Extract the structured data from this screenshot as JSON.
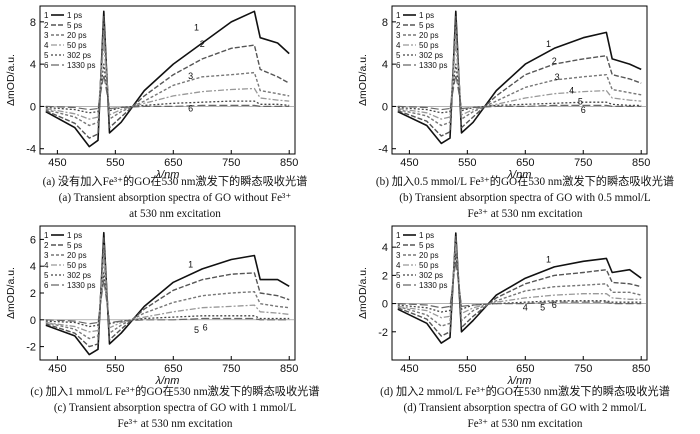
{
  "chart_data": [
    {
      "type": "line",
      "panel": "a",
      "xlabel": "λ/nm",
      "ylabel": "ΔmOD/a.u.",
      "xlim": [
        420,
        860
      ],
      "ylim": [
        -4.5,
        9.5
      ],
      "xticks": [
        450,
        550,
        650,
        750,
        850
      ],
      "yticks": [
        -4,
        0,
        4,
        8
      ],
      "legend": [
        {
          "num": "1",
          "label": "1 ps"
        },
        {
          "num": "2",
          "label": "5 ps"
        },
        {
          "num": "3",
          "label": "20 ps"
        },
        {
          "num": "4",
          "label": "50 ps"
        },
        {
          "num": "5",
          "label": "302 ps"
        },
        {
          "num": "6",
          "label": "1330 ps"
        }
      ],
      "legend_position": "top-left",
      "annotations": [
        {
          "text": "1",
          "x": 690,
          "y": 7.2
        },
        {
          "text": "2",
          "x": 700,
          "y": 5.6
        },
        {
          "text": "3",
          "x": 680,
          "y": 2.6
        },
        {
          "text": "6",
          "x": 680,
          "y": -0.5
        }
      ],
      "x": [
        430,
        480,
        505,
        520,
        530,
        540,
        560,
        600,
        650,
        700,
        750,
        790,
        800,
        830,
        850
      ],
      "series": [
        {
          "values": [
            -0.5,
            -2.0,
            -3.8,
            -3.2,
            9.0,
            -2.5,
            -1.5,
            1.5,
            4.0,
            6.0,
            8.0,
            9.0,
            6.5,
            6.0,
            5.0
          ]
        },
        {
          "values": [
            -0.4,
            -1.6,
            -3.0,
            -2.6,
            8.5,
            -2.0,
            -1.0,
            1.0,
            3.0,
            4.5,
            5.5,
            5.8,
            3.5,
            2.8,
            2.2
          ]
        },
        {
          "values": [
            -0.3,
            -1.0,
            -1.8,
            -1.5,
            7.5,
            -1.2,
            -0.5,
            0.5,
            2.0,
            2.8,
            3.0,
            3.2,
            1.5,
            1.2,
            1.0
          ]
        },
        {
          "values": [
            -0.2,
            -0.7,
            -1.2,
            -1.0,
            6.0,
            -0.8,
            -0.3,
            0.3,
            1.0,
            1.4,
            1.6,
            1.7,
            0.8,
            0.6,
            0.5
          ]
        },
        {
          "values": [
            -0.1,
            -0.3,
            -0.6,
            -0.5,
            4.0,
            -0.4,
            -0.1,
            0.1,
            0.3,
            0.4,
            0.5,
            0.5,
            0.2,
            0.2,
            0.1
          ]
        },
        {
          "values": [
            0.0,
            -0.1,
            -0.3,
            -0.2,
            3.0,
            -0.2,
            -0.1,
            0.0,
            0.0,
            0.1,
            0.1,
            0.1,
            0.0,
            0.0,
            0.0
          ]
        }
      ]
    },
    {
      "type": "line",
      "panel": "b",
      "xlabel": "λ/nm",
      "ylabel": "ΔmOD/a.u.",
      "xlim": [
        420,
        860
      ],
      "ylim": [
        -4.5,
        9.5
      ],
      "xticks": [
        450,
        550,
        650,
        750,
        850
      ],
      "yticks": [
        -4,
        0,
        4,
        8
      ],
      "legend": [
        {
          "num": "1",
          "label": "1 ps"
        },
        {
          "num": "2",
          "label": "5 ps"
        },
        {
          "num": "3",
          "label": "20 ps"
        },
        {
          "num": "4",
          "label": "50 ps"
        },
        {
          "num": "5",
          "label": "302 ps"
        },
        {
          "num": "6",
          "label": "1330 ps"
        }
      ],
      "legend_position": "top-left",
      "annotations": [
        {
          "text": "1",
          "x": 690,
          "y": 5.6
        },
        {
          "text": "2",
          "x": 700,
          "y": 4.0
        },
        {
          "text": "3",
          "x": 705,
          "y": 2.5
        },
        {
          "text": "4",
          "x": 730,
          "y": 1.2
        },
        {
          "text": "5",
          "x": 745,
          "y": 0.2
        },
        {
          "text": "6",
          "x": 750,
          "y": -0.6
        }
      ],
      "x": [
        430,
        480,
        505,
        520,
        530,
        540,
        560,
        600,
        650,
        700,
        750,
        790,
        800,
        830,
        850
      ],
      "series": [
        {
          "values": [
            -0.5,
            -1.8,
            -3.5,
            -3.0,
            9.0,
            -2.5,
            -1.5,
            1.5,
            4.0,
            5.5,
            6.5,
            7.0,
            4.5,
            4.0,
            3.5
          ]
        },
        {
          "values": [
            -0.4,
            -1.4,
            -2.8,
            -2.4,
            8.5,
            -2.0,
            -1.0,
            1.0,
            3.0,
            4.0,
            4.5,
            4.8,
            3.0,
            2.6,
            2.2
          ]
        },
        {
          "values": [
            -0.3,
            -0.9,
            -1.8,
            -1.5,
            7.5,
            -1.2,
            -0.5,
            0.5,
            1.8,
            2.5,
            2.8,
            3.0,
            1.6,
            1.3,
            1.1
          ]
        },
        {
          "values": [
            -0.2,
            -0.6,
            -1.2,
            -1.0,
            6.0,
            -0.8,
            -0.3,
            0.2,
            0.8,
            1.2,
            1.4,
            1.5,
            0.8,
            0.6,
            0.5
          ]
        },
        {
          "values": [
            -0.1,
            -0.3,
            -0.6,
            -0.5,
            4.0,
            -0.4,
            -0.1,
            0.1,
            0.2,
            0.3,
            0.4,
            0.4,
            0.2,
            0.1,
            0.1
          ]
        },
        {
          "values": [
            0.0,
            -0.1,
            -0.3,
            -0.2,
            3.0,
            -0.2,
            -0.1,
            0.0,
            0.0,
            0.1,
            0.1,
            0.1,
            0.0,
            0.0,
            0.0
          ]
        }
      ]
    },
    {
      "type": "line",
      "panel": "c",
      "xlabel": "λ/nm",
      "ylabel": "ΔmOD/a.u.",
      "xlim": [
        420,
        860
      ],
      "ylim": [
        -3,
        7
      ],
      "xticks": [
        450,
        550,
        650,
        750,
        850
      ],
      "yticks": [
        -2,
        0,
        2,
        4,
        6
      ],
      "legend": [
        {
          "num": "1",
          "label": "1 ps"
        },
        {
          "num": "2",
          "label": "5 ps"
        },
        {
          "num": "3",
          "label": "20 ps"
        },
        {
          "num": "4",
          "label": "50 ps"
        },
        {
          "num": "5",
          "label": "302 ps"
        },
        {
          "num": "6",
          "label": "1330 ps"
        }
      ],
      "legend_position": "top-left",
      "annotations": [
        {
          "text": "1",
          "x": 680,
          "y": 3.9
        },
        {
          "text": "5",
          "x": 690,
          "y": -1.0
        },
        {
          "text": "6",
          "x": 705,
          "y": -0.8
        }
      ],
      "x": [
        430,
        480,
        505,
        520,
        530,
        540,
        560,
        600,
        650,
        700,
        750,
        790,
        800,
        830,
        850
      ],
      "series": [
        {
          "values": [
            -0.4,
            -1.2,
            -2.6,
            -2.2,
            6.5,
            -1.8,
            -1.0,
            1.0,
            2.8,
            3.8,
            4.5,
            4.8,
            3.0,
            3.0,
            2.5
          ]
        },
        {
          "values": [
            -0.3,
            -1.0,
            -2.0,
            -1.8,
            6.2,
            -1.5,
            -0.7,
            0.8,
            2.2,
            3.0,
            3.4,
            3.5,
            2.0,
            1.8,
            1.5
          ]
        },
        {
          "values": [
            -0.2,
            -0.7,
            -1.4,
            -1.2,
            5.5,
            -1.0,
            -0.4,
            0.5,
            1.3,
            1.8,
            2.0,
            2.1,
            1.2,
            1.0,
            0.9
          ]
        },
        {
          "values": [
            -0.2,
            -0.5,
            -0.9,
            -0.8,
            4.5,
            -0.6,
            -0.2,
            0.2,
            0.6,
            0.9,
            1.0,
            1.1,
            0.6,
            0.5,
            0.4
          ]
        },
        {
          "values": [
            -0.1,
            -0.2,
            -0.5,
            -0.4,
            3.5,
            -0.3,
            -0.1,
            0.1,
            0.2,
            0.3,
            0.3,
            0.3,
            0.1,
            0.1,
            0.1
          ]
        },
        {
          "values": [
            0.0,
            -0.1,
            -0.3,
            -0.2,
            3.0,
            -0.2,
            -0.1,
            0.0,
            0.0,
            0.1,
            0.1,
            0.1,
            0.0,
            0.0,
            0.0
          ]
        }
      ]
    },
    {
      "type": "line",
      "panel": "d",
      "xlabel": "λ/nm",
      "ylabel": "ΔmOD/a.u.",
      "xlim": [
        420,
        860
      ],
      "ylim": [
        -4,
        5.5
      ],
      "xticks": [
        450,
        550,
        650,
        750,
        850
      ],
      "yticks": [
        -2,
        0,
        2,
        4
      ],
      "legend": [
        {
          "num": "1",
          "label": "1 ps"
        },
        {
          "num": "2",
          "label": "5 ps"
        },
        {
          "num": "3",
          "label": "20 ps"
        },
        {
          "num": "4",
          "label": "50 ps"
        },
        {
          "num": "5",
          "label": "302 ps"
        },
        {
          "num": "6",
          "label": "1330 ps"
        }
      ],
      "legend_position": "top-left",
      "annotations": [
        {
          "text": "1",
          "x": 690,
          "y": 2.9
        },
        {
          "text": "4",
          "x": 650,
          "y": -0.5
        },
        {
          "text": "5",
          "x": 680,
          "y": -0.5
        },
        {
          "text": "6",
          "x": 700,
          "y": -0.3
        }
      ],
      "x": [
        430,
        480,
        505,
        520,
        530,
        540,
        560,
        600,
        650,
        700,
        750,
        790,
        800,
        830,
        850
      ],
      "series": [
        {
          "values": [
            -0.4,
            -1.4,
            -2.8,
            -2.4,
            5.0,
            -2.0,
            -1.2,
            0.6,
            1.8,
            2.6,
            3.0,
            3.2,
            2.2,
            2.4,
            1.8
          ]
        },
        {
          "values": [
            -0.3,
            -1.1,
            -2.3,
            -2.0,
            4.8,
            -1.7,
            -0.9,
            0.4,
            1.4,
            2.0,
            2.2,
            2.4,
            1.5,
            1.4,
            1.2
          ]
        },
        {
          "values": [
            -0.2,
            -0.8,
            -1.6,
            -1.4,
            4.5,
            -1.2,
            -0.5,
            0.2,
            0.9,
            1.2,
            1.3,
            1.4,
            0.8,
            0.8,
            0.6
          ]
        },
        {
          "values": [
            -0.2,
            -0.5,
            -1.0,
            -0.9,
            4.0,
            -0.7,
            -0.3,
            0.1,
            0.4,
            0.6,
            0.7,
            0.7,
            0.4,
            0.3,
            0.3
          ]
        },
        {
          "values": [
            -0.1,
            -0.3,
            -0.6,
            -0.5,
            3.5,
            -0.4,
            -0.1,
            0.0,
            0.1,
            0.2,
            0.2,
            0.2,
            0.1,
            0.1,
            0.1
          ]
        },
        {
          "values": [
            0.0,
            -0.1,
            -0.3,
            -0.2,
            3.0,
            -0.2,
            -0.1,
            0.0,
            0.0,
            0.1,
            0.1,
            0.1,
            0.0,
            0.0,
            0.0
          ]
        }
      ]
    }
  ],
  "captions": {
    "a": {
      "cn": "(a) 没有加入Fe³⁺的GO在530 nm激发下的瞬态吸收光谱",
      "en1": "(a) Transient absorption spectra of GO without Fe³⁺",
      "en2": "at 530 nm excitation"
    },
    "b": {
      "cn": "(b) 加入0.5 mmol/L Fe³⁺的GO在530 nm激发下的瞬态吸收光谱",
      "en1": "(b) Transient absorption spectra of GO with 0.5 mmol/L",
      "en2": "Fe³⁺ at 530 nm excitation"
    },
    "c": {
      "cn": "(c) 加入1 mmol/L Fe³⁺的GO在530 nm激发下的瞬态吸收光谱",
      "en1": "(c) Transient absorption spectra of GO with 1 mmol/L",
      "en2": "Fe³⁺ at 530 nm excitation"
    },
    "d": {
      "cn": "(d) 加入2 mmol/L Fe³⁺的GO在530 nm激发下的瞬态吸收光谱",
      "en1": "(d) Transient absorption spectra of GO with 2 mmol/L",
      "en2": "Fe³⁺ at 530 nm excitation"
    }
  },
  "colors": [
    "#111111",
    "#555555",
    "#777777",
    "#999999",
    "#444444",
    "#666666"
  ]
}
